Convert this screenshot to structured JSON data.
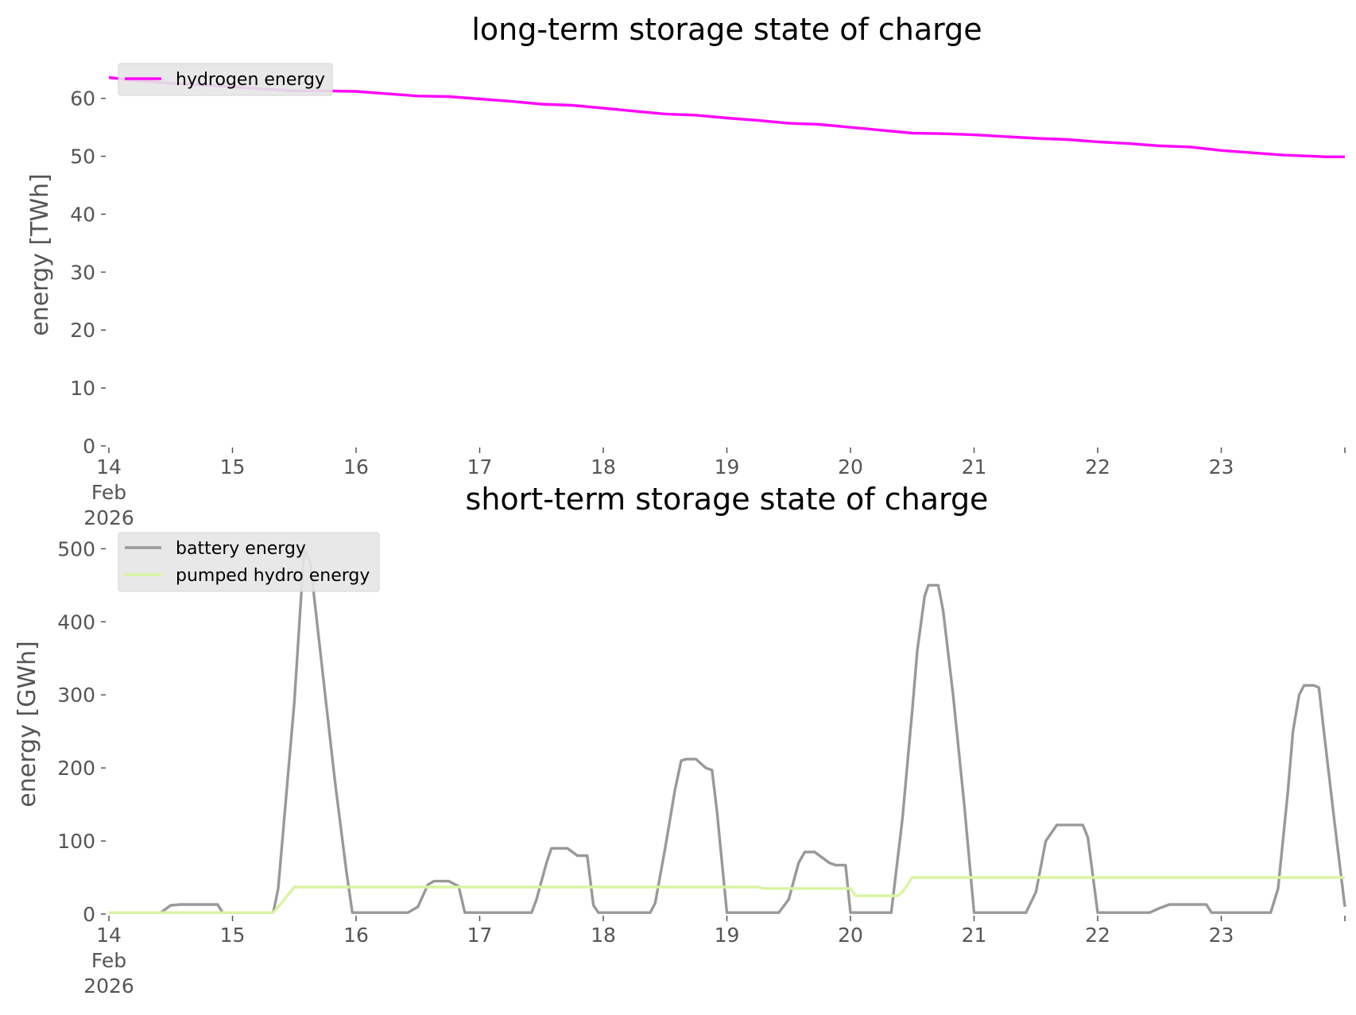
{
  "chart_data": [
    {
      "type": "line",
      "title": "long-term storage state of charge",
      "xlabel": "",
      "ylabel": "energy [TWh]",
      "x_unit": "days (Feb 2026)",
      "x_range": [
        "2026-02-14",
        "2026-02-24"
      ],
      "x_ticks": [
        {
          "x": 14,
          "lines": [
            "14",
            "Feb",
            "2026"
          ]
        },
        {
          "x": 15,
          "lines": [
            "15"
          ]
        },
        {
          "x": 16,
          "lines": [
            "16"
          ]
        },
        {
          "x": 17,
          "lines": [
            "17"
          ]
        },
        {
          "x": 18,
          "lines": [
            "18"
          ]
        },
        {
          "x": 19,
          "lines": [
            "19"
          ]
        },
        {
          "x": 20,
          "lines": [
            "20"
          ]
        },
        {
          "x": 21,
          "lines": [
            "21"
          ]
        },
        {
          "x": 22,
          "lines": [
            "22"
          ]
        },
        {
          "x": 23,
          "lines": [
            "23"
          ]
        }
      ],
      "ylim": [
        0,
        66
      ],
      "y_ticks": [
        0,
        10,
        20,
        30,
        40,
        50,
        60
      ],
      "grid": false,
      "legend_position": "top-left",
      "series": [
        {
          "name": "hydrogen energy",
          "color": "#ff00ff",
          "points": [
            [
              14.0,
              63.6
            ],
            [
              14.25,
              63.0
            ],
            [
              14.5,
              62.6
            ],
            [
              14.75,
              62.3
            ],
            [
              15.0,
              62.0
            ],
            [
              15.25,
              61.6
            ],
            [
              15.5,
              61.3
            ],
            [
              15.75,
              61.3
            ],
            [
              16.0,
              61.2
            ],
            [
              16.25,
              60.8
            ],
            [
              16.5,
              60.4
            ],
            [
              16.75,
              60.3
            ],
            [
              17.0,
              59.9
            ],
            [
              17.25,
              59.5
            ],
            [
              17.5,
              59.0
            ],
            [
              17.75,
              58.8
            ],
            [
              18.0,
              58.3
            ],
            [
              18.25,
              57.8
            ],
            [
              18.5,
              57.3
            ],
            [
              18.75,
              57.1
            ],
            [
              19.0,
              56.6
            ],
            [
              19.25,
              56.2
            ],
            [
              19.5,
              55.7
            ],
            [
              19.75,
              55.5
            ],
            [
              20.0,
              55.0
            ],
            [
              20.25,
              54.5
            ],
            [
              20.5,
              54.0
            ],
            [
              20.75,
              53.9
            ],
            [
              21.0,
              53.7
            ],
            [
              21.25,
              53.4
            ],
            [
              21.5,
              53.1
            ],
            [
              21.75,
              52.9
            ],
            [
              22.0,
              52.5
            ],
            [
              22.25,
              52.2
            ],
            [
              22.5,
              51.8
            ],
            [
              22.75,
              51.6
            ],
            [
              23.0,
              51.0
            ],
            [
              23.25,
              50.6
            ],
            [
              23.5,
              50.2
            ],
            [
              23.75,
              50.0
            ],
            [
              23.85,
              49.9
            ],
            [
              24.0,
              49.9
            ]
          ]
        }
      ]
    },
    {
      "type": "line",
      "title": "short-term storage state of charge",
      "xlabel": "",
      "ylabel": "energy [GWh]",
      "x_unit": "days (Feb 2026)",
      "x_range": [
        "2026-02-14",
        "2026-02-24"
      ],
      "x_ticks": [
        {
          "x": 14,
          "lines": [
            "14",
            "Feb",
            "2026"
          ]
        },
        {
          "x": 15,
          "lines": [
            "15"
          ]
        },
        {
          "x": 16,
          "lines": [
            "16"
          ]
        },
        {
          "x": 17,
          "lines": [
            "17"
          ]
        },
        {
          "x": 18,
          "lines": [
            "18"
          ]
        },
        {
          "x": 19,
          "lines": [
            "19"
          ]
        },
        {
          "x": 20,
          "lines": [
            "20"
          ]
        },
        {
          "x": 21,
          "lines": [
            "21"
          ]
        },
        {
          "x": 22,
          "lines": [
            "22"
          ]
        },
        {
          "x": 23,
          "lines": [
            "23"
          ]
        }
      ],
      "ylim": [
        0,
        520
      ],
      "y_ticks": [
        0,
        100,
        200,
        300,
        400,
        500
      ],
      "grid": false,
      "legend_position": "top-left",
      "series": [
        {
          "name": "battery energy",
          "color": "#999999",
          "points": [
            [
              14.0,
              2
            ],
            [
              14.42,
              2
            ],
            [
              14.5,
              12
            ],
            [
              14.58,
              13
            ],
            [
              14.88,
              13
            ],
            [
              14.92,
              2
            ],
            [
              15.33,
              2
            ],
            [
              15.37,
              35
            ],
            [
              15.5,
              290
            ],
            [
              15.58,
              500
            ],
            [
              15.63,
              480
            ],
            [
              15.75,
              300
            ],
            [
              15.83,
              180
            ],
            [
              15.92,
              60
            ],
            [
              15.97,
              2
            ],
            [
              16.42,
              2
            ],
            [
              16.5,
              10
            ],
            [
              16.58,
              40
            ],
            [
              16.63,
              45
            ],
            [
              16.75,
              45
            ],
            [
              16.83,
              38
            ],
            [
              16.88,
              2
            ],
            [
              17.42,
              2
            ],
            [
              17.46,
              20
            ],
            [
              17.54,
              70
            ],
            [
              17.58,
              90
            ],
            [
              17.71,
              90
            ],
            [
              17.79,
              80
            ],
            [
              17.87,
              80
            ],
            [
              17.92,
              12
            ],
            [
              17.96,
              2
            ],
            [
              18.38,
              2
            ],
            [
              18.42,
              15
            ],
            [
              18.5,
              90
            ],
            [
              18.58,
              170
            ],
            [
              18.63,
              210
            ],
            [
              18.67,
              212
            ],
            [
              18.75,
              212
            ],
            [
              18.83,
              200
            ],
            [
              18.88,
              197
            ],
            [
              18.92,
              140
            ],
            [
              19.0,
              2
            ],
            [
              19.42,
              2
            ],
            [
              19.5,
              20
            ],
            [
              19.58,
              70
            ],
            [
              19.63,
              85
            ],
            [
              19.71,
              85
            ],
            [
              19.75,
              80
            ],
            [
              19.83,
              70
            ],
            [
              19.88,
              67
            ],
            [
              19.96,
              67
            ],
            [
              20.0,
              2
            ],
            [
              20.33,
              2
            ],
            [
              20.42,
              130
            ],
            [
              20.5,
              280
            ],
            [
              20.54,
              360
            ],
            [
              20.6,
              435
            ],
            [
              20.63,
              450
            ],
            [
              20.71,
              450
            ],
            [
              20.75,
              415
            ],
            [
              20.83,
              300
            ],
            [
              20.92,
              150
            ],
            [
              21.0,
              2
            ],
            [
              21.42,
              2
            ],
            [
              21.5,
              30
            ],
            [
              21.58,
              100
            ],
            [
              21.67,
              122
            ],
            [
              21.79,
              122
            ],
            [
              21.88,
              122
            ],
            [
              21.92,
              105
            ],
            [
              22.0,
              2
            ],
            [
              22.42,
              2
            ],
            [
              22.5,
              8
            ],
            [
              22.58,
              13
            ],
            [
              22.88,
              13
            ],
            [
              22.92,
              2
            ],
            [
              23.4,
              2
            ],
            [
              23.46,
              35
            ],
            [
              23.54,
              170
            ],
            [
              23.58,
              250
            ],
            [
              23.63,
              300
            ],
            [
              23.67,
              313
            ],
            [
              23.75,
              313
            ],
            [
              23.79,
              310
            ],
            [
              23.83,
              250
            ],
            [
              23.92,
              120
            ],
            [
              24.0,
              10
            ]
          ]
        },
        {
          "name": "pumped hydro energy",
          "color": "#d9f5a0",
          "points": [
            [
              14.0,
              2
            ],
            [
              15.33,
              2
            ],
            [
              15.42,
              20
            ],
            [
              15.5,
              37
            ],
            [
              19.25,
              37
            ],
            [
              19.3,
              35
            ],
            [
              19.92,
              35
            ],
            [
              20.0,
              35
            ],
            [
              20.04,
              25
            ],
            [
              20.38,
              25
            ],
            [
              20.42,
              30
            ],
            [
              20.5,
              50
            ],
            [
              24.0,
              50
            ]
          ]
        }
      ]
    }
  ]
}
